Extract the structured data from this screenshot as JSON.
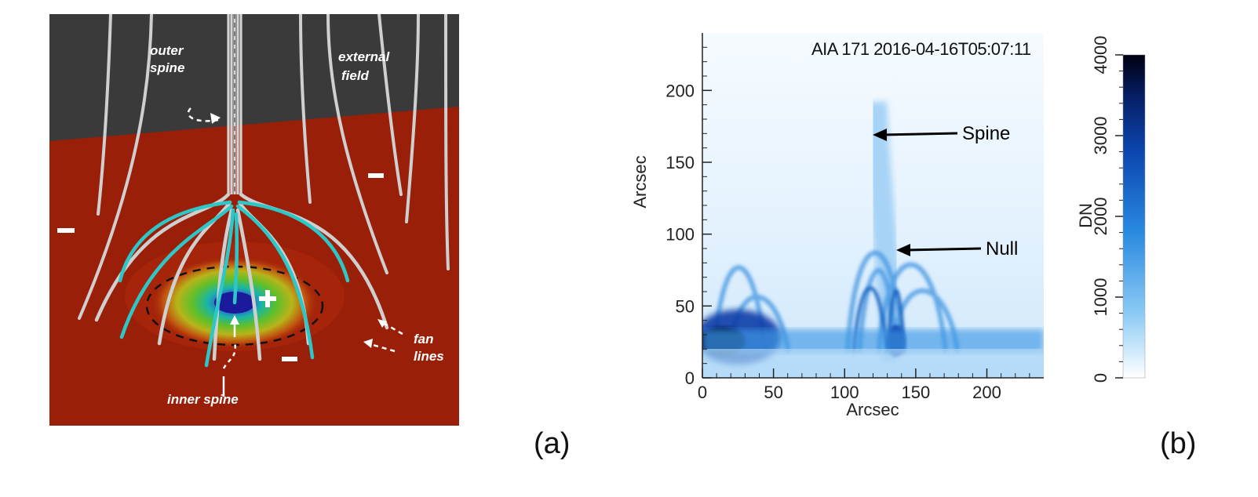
{
  "panel_a": {
    "label": "(a)",
    "annotations": {
      "outer_spine_1": "outer",
      "outer_spine_2": "spine",
      "external_field_1": "external",
      "external_field_2": "field",
      "fan_lines_1": "fan",
      "fan_lines_2": "lines",
      "inner_spine": "inner spine"
    },
    "polarity": {
      "minus": "−",
      "plus": "+"
    },
    "colors": {
      "background_sky": "#3a3a3a",
      "photosphere": "#9a1f08",
      "field_lines": "#cfcfcf",
      "fan_lines_cyan": "#2ec7c7"
    }
  },
  "panel_b": {
    "label": "(b)",
    "title": "AIA 171 2016-04-16T05:07:11",
    "annotations": {
      "spine": "Spine",
      "null": "Null"
    },
    "colorbar": {
      "label": "DN",
      "ticks": [
        "0",
        "1000",
        "2000",
        "3000",
        "4000"
      ],
      "range": [
        0,
        4000
      ],
      "colormap": [
        "#ffffff",
        "#7fc4f5",
        "#1e7fd6",
        "#0a3fa0",
        "#000020"
      ]
    }
  },
  "chart_data": {
    "type": "heatmap",
    "title": "AIA 171 2016-04-16T05:07:11",
    "xlabel": "Arcsec",
    "ylabel": "Arcsec",
    "xlim": [
      0,
      240
    ],
    "ylim": [
      0,
      240
    ],
    "xticks": [
      "0",
      "50",
      "100",
      "150",
      "200"
    ],
    "yticks": [
      "0",
      "50",
      "100",
      "150",
      "200"
    ],
    "colorbar_label": "DN",
    "colorbar_range": [
      0,
      4000
    ]
  }
}
